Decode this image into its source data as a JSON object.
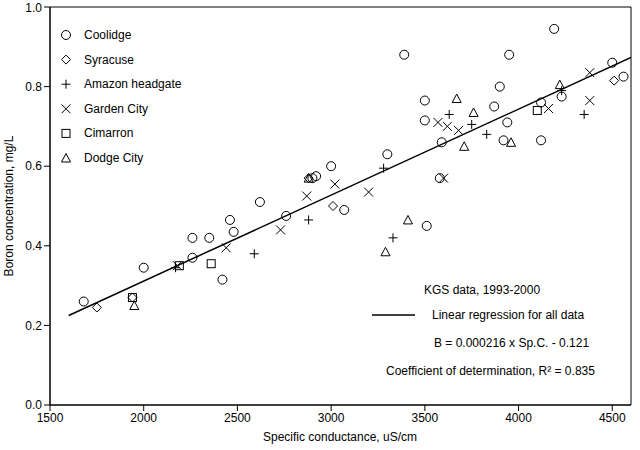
{
  "chart_data": {
    "type": "scatter",
    "x_label": "Specific conductance, uS/cm",
    "y_label": "Boron concentration, mg/L",
    "xlim": [
      1500,
      4600
    ],
    "xticks": [
      1500,
      2000,
      2500,
      3000,
      3500,
      4000,
      4500
    ],
    "ylim": [
      0,
      1
    ],
    "yticks": [
      {
        "value": 0,
        "label": "0.0"
      },
      0.2,
      0.4,
      0.6,
      0.8,
      {
        "value": 1,
        "label": "1.0"
      }
    ],
    "grid": false,
    "legend": "upper left",
    "series": [
      {
        "name": "Coolidge",
        "marker": "circle",
        "color": "#000000",
        "x": [
          1680,
          2000,
          2260,
          2260,
          2350,
          2420,
          2460,
          2480,
          2620,
          2760,
          2900,
          2920,
          3000,
          3070,
          3300,
          3390,
          3500,
          3500,
          3510,
          3580,
          3590,
          3870,
          3900,
          3920,
          3940,
          3950,
          4120,
          4120,
          4190,
          4230,
          4500,
          4560
        ],
        "values": [
          0.26,
          0.345,
          0.42,
          0.37,
          0.42,
          0.315,
          0.465,
          0.435,
          0.51,
          0.475,
          0.57,
          0.575,
          0.6,
          0.49,
          0.63,
          0.88,
          0.765,
          0.715,
          0.45,
          0.57,
          0.66,
          0.75,
          0.8,
          0.665,
          0.71,
          0.88,
          0.76,
          0.665,
          0.945,
          0.775,
          0.86,
          0.825
        ]
      },
      {
        "name": "Syracuse",
        "marker": "diamond",
        "color": "#000000",
        "x": [
          1750,
          1940,
          2880,
          3010,
          4510
        ],
        "values": [
          0.245,
          0.27,
          0.57,
          0.5,
          0.815
        ]
      },
      {
        "name": "Amazon headgate",
        "marker": "plus",
        "color": "#000000",
        "x": [
          2170,
          2590,
          2880,
          3280,
          3330,
          3630,
          3750,
          3830,
          4230,
          4350
        ],
        "values": [
          0.345,
          0.38,
          0.465,
          0.595,
          0.42,
          0.73,
          0.705,
          0.68,
          0.79,
          0.73
        ]
      },
      {
        "name": "Garden City",
        "marker": "x",
        "color": "#000000",
        "x": [
          2180,
          2440,
          2730,
          2870,
          3020,
          3200,
          3570,
          3600,
          3620,
          3680,
          4160,
          4380,
          4380
        ],
        "values": [
          0.35,
          0.395,
          0.44,
          0.525,
          0.555,
          0.535,
          0.71,
          0.57,
          0.7,
          0.69,
          0.745,
          0.835,
          0.765
        ]
      },
      {
        "name": "Cimarron",
        "marker": "square",
        "color": "#000000",
        "x": [
          1940,
          2190,
          2360,
          4100
        ],
        "values": [
          0.27,
          0.35,
          0.355,
          0.74
        ]
      },
      {
        "name": "Dodge City",
        "marker": "triangle",
        "color": "#000000",
        "x": [
          1950,
          2880,
          3290,
          3410,
          3670,
          3710,
          3760,
          3960,
          4220
        ],
        "values": [
          0.25,
          0.57,
          0.385,
          0.465,
          0.77,
          0.65,
          0.735,
          0.66,
          0.805
        ]
      },
      {
        "name": "Linear regression for all data",
        "type": "line",
        "line_style": "solid",
        "color": "#000000",
        "x": [
          1600,
          4600
        ],
        "values": [
          0.225,
          0.873
        ]
      }
    ],
    "annotations": [
      "KGS data, 1993-2000",
      "B = 0.000216 x Sp.C. - 0.121",
      "Coefficient of determination, R² = 0.835"
    ]
  }
}
